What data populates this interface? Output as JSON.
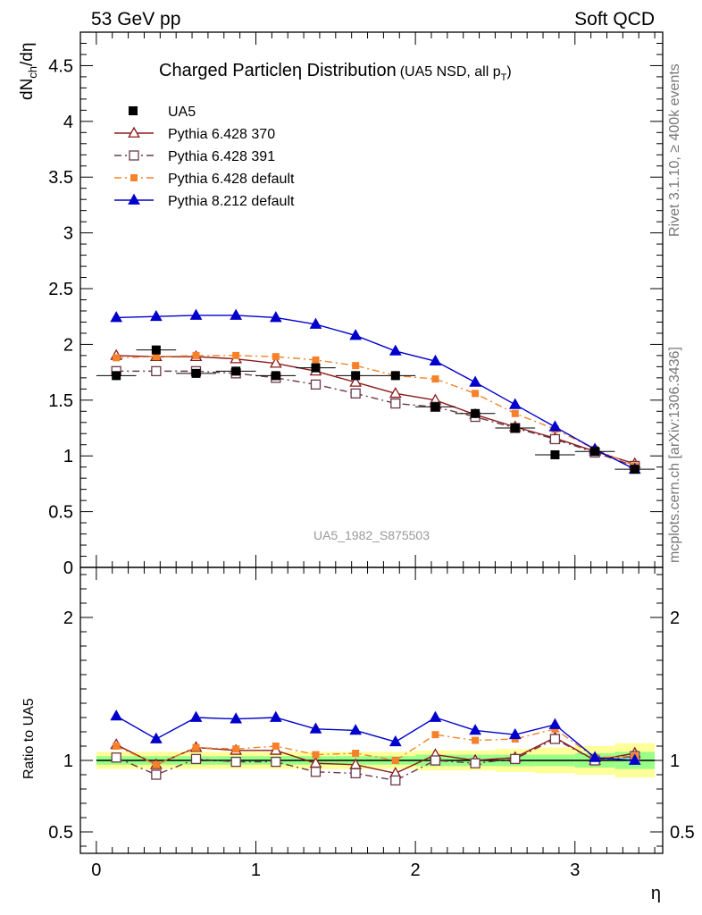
{
  "header": {
    "left": "53 GeV pp",
    "right": "Soft QCD"
  },
  "side": {
    "rivet": "Rivet 3.1.10, ≥ 400k events",
    "mcplots": "mcplots.cern.ch [arXiv:1306.3436]"
  },
  "chart_data": {
    "type": "line",
    "title_main": "Charged Particle",
    "title_symbol": "η",
    "title_word": " Distribution",
    "title_sub": "(UA5 NSD, all p",
    "title_sub_index": "T",
    "title_sub_close": ")",
    "ylabel_main_d": "dN",
    "ylabel_main_sub": "ch",
    "ylabel_main_rest": "/dη",
    "ylabel_ratio": "Ratio to UA5",
    "xlabel": "η",
    "watermark": "UA5_1982_S875503",
    "xlim": [
      -0.1,
      3.55
    ],
    "ylim_main": [
      0,
      4.8
    ],
    "ylim_ratio": [
      0.35,
      2.35
    ],
    "x_ticks": [
      0,
      1,
      2,
      3
    ],
    "y_ticks_main": [
      0,
      0.5,
      1,
      1.5,
      2,
      2.5,
      3,
      3.5,
      4,
      4.5
    ],
    "y_tick_labels_main": [
      "0",
      "0.5",
      "1",
      "1.5",
      "2",
      "2.5",
      "3",
      "3.5",
      "4",
      "4.5"
    ],
    "y_ticks_ratio": [
      0.5,
      1,
      2
    ],
    "y_tick_labels_ratio": [
      "0.5",
      "1",
      "2"
    ],
    "x": [
      0.125,
      0.375,
      0.625,
      0.875,
      1.125,
      1.375,
      1.625,
      1.875,
      2.125,
      2.375,
      2.625,
      2.875,
      3.125,
      3.375
    ],
    "data": {
      "name": "UA5",
      "values": [
        1.72,
        1.95,
        1.74,
        1.76,
        1.72,
        1.79,
        1.72,
        1.72,
        1.44,
        1.38,
        1.25,
        1.01,
        1.04,
        0.88
      ],
      "errors": [
        0.04,
        0.04,
        0.04,
        0.04,
        0.04,
        0.04,
        0.04,
        0.04,
        0.04,
        0.04,
        0.03,
        0.03,
        0.03,
        0.03
      ],
      "band_stat": [
        0.03,
        0.03,
        0.03,
        0.03,
        0.03,
        0.03,
        0.03,
        0.03,
        0.04,
        0.04,
        0.04,
        0.04,
        0.05,
        0.06
      ],
      "band_tot": [
        0.06,
        0.06,
        0.06,
        0.06,
        0.06,
        0.06,
        0.06,
        0.06,
        0.07,
        0.07,
        0.08,
        0.09,
        0.1,
        0.12
      ]
    },
    "series": [
      {
        "name": "Pythia 6.428 370",
        "color": "#8b1a1a",
        "marker": "triangle-open",
        "dash": "solid",
        "values": [
          1.9,
          1.89,
          1.89,
          1.87,
          1.83,
          1.76,
          1.66,
          1.56,
          1.5,
          1.37,
          1.26,
          1.16,
          1.04,
          0.93
        ],
        "ratio": [
          1.11,
          0.97,
          1.09,
          1.07,
          1.07,
          0.98,
          0.97,
          0.91,
          1.04,
          1.0,
          1.02,
          1.16,
          1.0,
          1.05
        ]
      },
      {
        "name": "Pythia 6.428 391",
        "color": "#6b3a4a",
        "marker": "square-open",
        "dash": "dashdot",
        "values": [
          1.76,
          1.76,
          1.76,
          1.74,
          1.7,
          1.64,
          1.56,
          1.47,
          1.44,
          1.35,
          1.25,
          1.15,
          1.03,
          0.91
        ],
        "ratio": [
          1.02,
          0.9,
          1.01,
          0.99,
          0.99,
          0.92,
          0.91,
          0.86,
          1.0,
          0.98,
          1.01,
          1.15,
          1.0,
          1.03
        ]
      },
      {
        "name": "Pythia 6.428 default",
        "color": "#f5822a",
        "marker": "square-filled",
        "dash": "dashdot",
        "values": [
          1.88,
          1.89,
          1.9,
          1.9,
          1.89,
          1.86,
          1.81,
          1.72,
          1.69,
          1.56,
          1.38,
          1.24,
          1.06,
          0.91
        ],
        "ratio": [
          1.1,
          0.97,
          1.09,
          1.08,
          1.1,
          1.04,
          1.05,
          1.0,
          1.18,
          1.14,
          1.15,
          1.22,
          1.02,
          1.03
        ]
      },
      {
        "name": "Pythia 8.212 default",
        "color": "#0000cc",
        "marker": "triangle-filled",
        "dash": "solid",
        "values": [
          2.24,
          2.25,
          2.26,
          2.26,
          2.24,
          2.18,
          2.08,
          1.94,
          1.85,
          1.66,
          1.46,
          1.26,
          1.06,
          0.88
        ],
        "ratio": [
          1.31,
          1.15,
          1.3,
          1.29,
          1.3,
          1.22,
          1.21,
          1.13,
          1.3,
          1.21,
          1.18,
          1.25,
          1.02,
          1.0
        ]
      }
    ]
  }
}
